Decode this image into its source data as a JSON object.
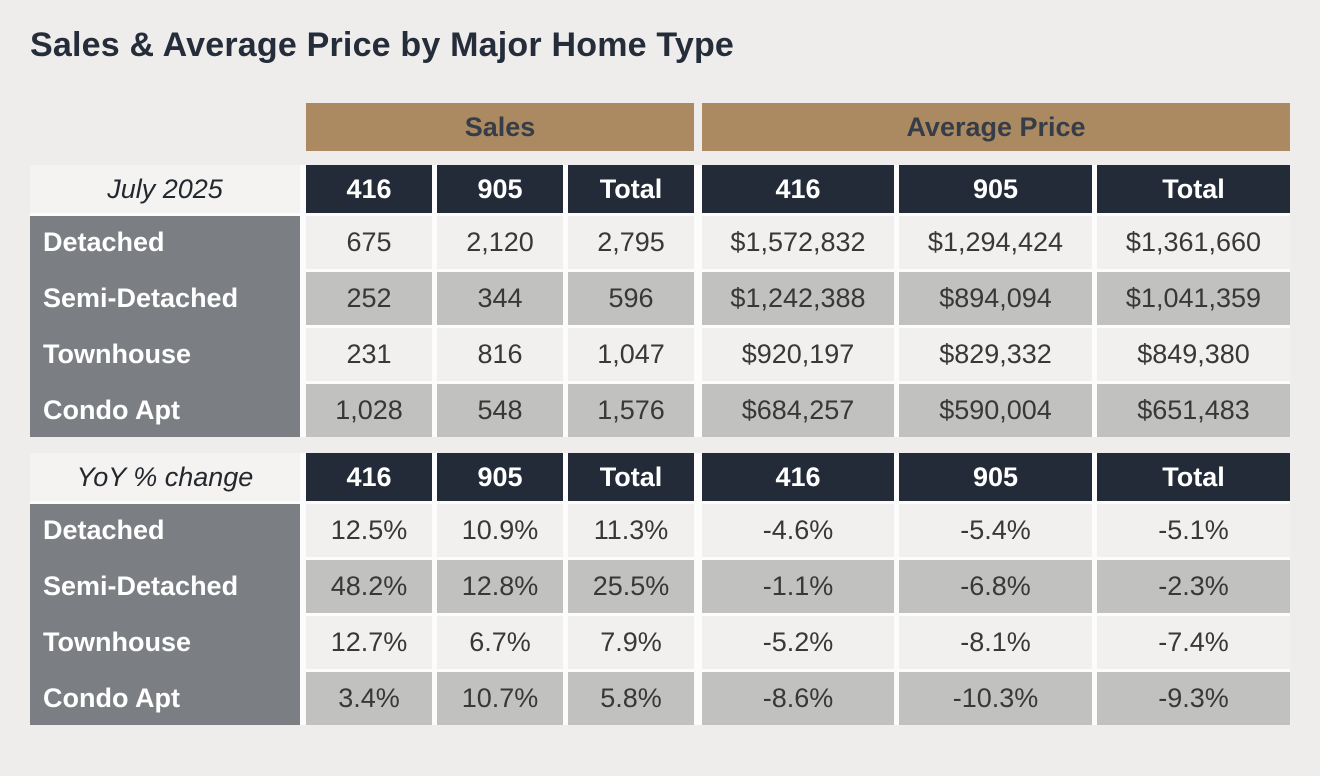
{
  "page": {
    "title": "Sales & Average Price by Major Home Type"
  },
  "colors": {
    "accent_tan": "#ab8a61",
    "header_navy": "#242b38",
    "row_label_gray": "#7b7e83",
    "row_light": "#f1f0ee",
    "row_dark": "#c1c1c0",
    "page_background": "#eeedeb"
  },
  "group_headers": {
    "sales": "Sales",
    "average_price": "Average Price"
  },
  "tables": [
    {
      "id": "current-month",
      "row_header_label": "July 2025",
      "columns": [
        "416",
        "905",
        "Total",
        "416",
        "905",
        "Total"
      ],
      "rows": [
        {
          "label": "Detached",
          "cells": [
            "675",
            "2,120",
            "2,795",
            "$1,572,832",
            "$1,294,424",
            "$1,361,660"
          ]
        },
        {
          "label": "Semi-Detached",
          "cells": [
            "252",
            "344",
            "596",
            "$1,242,388",
            "$894,094",
            "$1,041,359"
          ]
        },
        {
          "label": "Townhouse",
          "cells": [
            "231",
            "816",
            "1,047",
            "$920,197",
            "$829,332",
            "$849,380"
          ]
        },
        {
          "label": "Condo Apt",
          "cells": [
            "1,028",
            "548",
            "1,576",
            "$684,257",
            "$590,004",
            "$651,483"
          ]
        }
      ]
    },
    {
      "id": "yoy-change",
      "row_header_label": "YoY % change",
      "columns": [
        "416",
        "905",
        "Total",
        "416",
        "905",
        "Total"
      ],
      "rows": [
        {
          "label": "Detached",
          "cells": [
            "12.5%",
            "10.9%",
            "11.3%",
            "-4.6%",
            "-5.4%",
            "-5.1%"
          ]
        },
        {
          "label": "Semi-Detached",
          "cells": [
            "48.2%",
            "12.8%",
            "25.5%",
            "-1.1%",
            "-6.8%",
            "-2.3%"
          ]
        },
        {
          "label": "Townhouse",
          "cells": [
            "12.7%",
            "6.7%",
            "7.9%",
            "-5.2%",
            "-8.1%",
            "-7.4%"
          ]
        },
        {
          "label": "Condo Apt",
          "cells": [
            "3.4%",
            "10.7%",
            "5.8%",
            "-8.6%",
            "-10.3%",
            "-9.3%"
          ]
        }
      ]
    }
  ],
  "chart_data": [
    {
      "type": "table",
      "title": "Sales & Average Price by Major Home Type — July 2025",
      "column_groups": [
        "Sales",
        "Average Price"
      ],
      "columns": [
        "Sales 416",
        "Sales 905",
        "Sales Total",
        "Avg Price 416",
        "Avg Price 905",
        "Avg Price Total"
      ],
      "row_labels": [
        "Detached",
        "Semi-Detached",
        "Townhouse",
        "Condo Apt"
      ],
      "rows": [
        {
          "home_type": "Detached",
          "sales_416": 675,
          "sales_905": 2120,
          "sales_total": 2795,
          "avg_price_416": 1572832,
          "avg_price_905": 1294424,
          "avg_price_total": 1361660
        },
        {
          "home_type": "Semi-Detached",
          "sales_416": 252,
          "sales_905": 344,
          "sales_total": 596,
          "avg_price_416": 1242388,
          "avg_price_905": 894094,
          "avg_price_total": 1041359
        },
        {
          "home_type": "Townhouse",
          "sales_416": 231,
          "sales_905": 816,
          "sales_total": 1047,
          "avg_price_416": 920197,
          "avg_price_905": 829332,
          "avg_price_total": 849380
        },
        {
          "home_type": "Condo Apt",
          "sales_416": 1028,
          "sales_905": 548,
          "sales_total": 1576,
          "avg_price_416": 684257,
          "avg_price_905": 590004,
          "avg_price_total": 651483
        }
      ]
    },
    {
      "type": "table",
      "title": "YoY % change — Sales & Average Price by Major Home Type",
      "column_groups": [
        "Sales",
        "Average Price"
      ],
      "columns": [
        "Sales 416 %",
        "Sales 905 %",
        "Sales Total %",
        "Avg Price 416 %",
        "Avg Price 905 %",
        "Avg Price Total %"
      ],
      "row_labels": [
        "Detached",
        "Semi-Detached",
        "Townhouse",
        "Condo Apt"
      ],
      "rows": [
        {
          "home_type": "Detached",
          "sales_416_pct": 12.5,
          "sales_905_pct": 10.9,
          "sales_total_pct": 11.3,
          "avg_price_416_pct": -4.6,
          "avg_price_905_pct": -5.4,
          "avg_price_total_pct": -5.1
        },
        {
          "home_type": "Semi-Detached",
          "sales_416_pct": 48.2,
          "sales_905_pct": 12.8,
          "sales_total_pct": 25.5,
          "avg_price_416_pct": -1.1,
          "avg_price_905_pct": -6.8,
          "avg_price_total_pct": -2.3
        },
        {
          "home_type": "Townhouse",
          "sales_416_pct": 12.7,
          "sales_905_pct": 6.7,
          "sales_total_pct": 7.9,
          "avg_price_416_pct": -5.2,
          "avg_price_905_pct": -8.1,
          "avg_price_total_pct": -7.4
        },
        {
          "home_type": "Condo Apt",
          "sales_416_pct": 3.4,
          "sales_905_pct": 10.7,
          "sales_total_pct": 5.8,
          "avg_price_416_pct": -8.6,
          "avg_price_905_pct": -10.3,
          "avg_price_total_pct": -9.3
        }
      ]
    }
  ]
}
